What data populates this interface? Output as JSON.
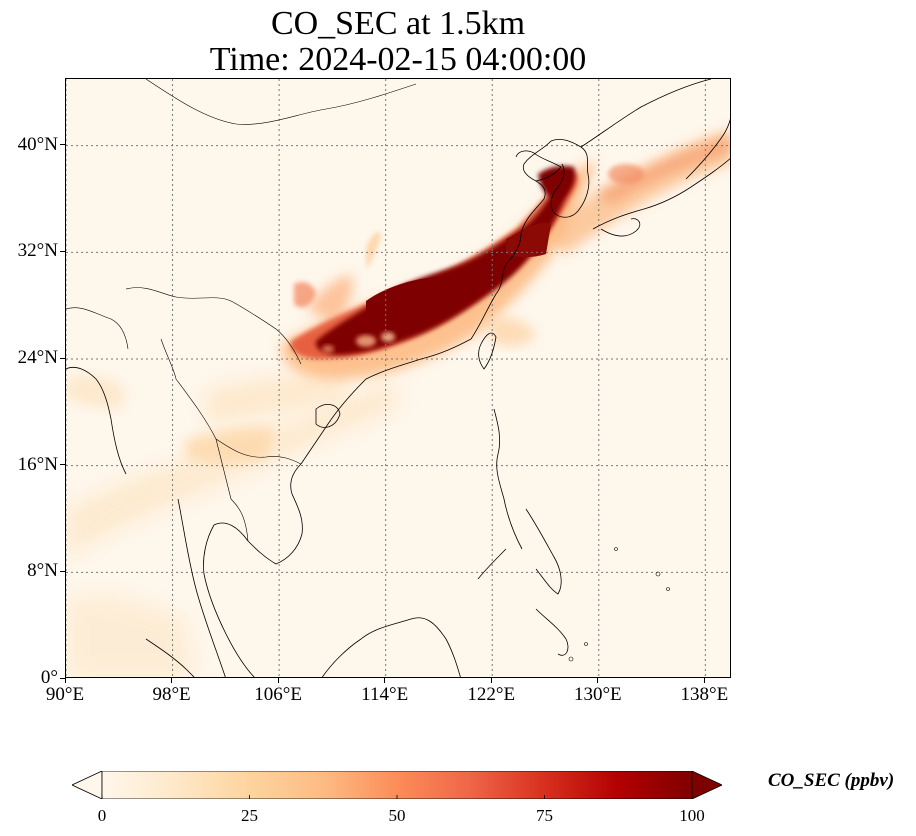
{
  "title": {
    "line1": "CO_SEC at 1.5km",
    "line2": "Time: 2024-02-15 04:00:00"
  },
  "map": {
    "variable": "CO_SEC",
    "level": "1.5km",
    "projection": "PlateCarree",
    "extent": {
      "lon_min": 90,
      "lon_max": 140,
      "lat_min": 0,
      "lat_max": 45
    },
    "gridlines": true,
    "gridline_style": "dotted gray",
    "lat_ticks": [
      {
        "value": 0,
        "label": "0°"
      },
      {
        "value": 8,
        "label": "8°N"
      },
      {
        "value": 16,
        "label": "16°N"
      },
      {
        "value": 24,
        "label": "24°N"
      },
      {
        "value": 32,
        "label": "32°N"
      },
      {
        "value": 40,
        "label": "40°N"
      }
    ],
    "lon_ticks": [
      {
        "value": 90,
        "label": "90°E"
      },
      {
        "value": 98,
        "label": "98°E"
      },
      {
        "value": 106,
        "label": "106°E"
      },
      {
        "value": 114,
        "label": "114°E"
      },
      {
        "value": 122,
        "label": "122°E"
      },
      {
        "value": 130,
        "label": "130°E"
      },
      {
        "value": 138,
        "label": "138°E"
      }
    ],
    "plume_region": "high concentrations from southern China (≈108–116°E, 24–28°N) northeast across the Yangtze delta to the Korean Peninsula and Sea of Japan"
  },
  "colorbar": {
    "label": "CO_SEC (ppbv)",
    "min": 0,
    "max": 100,
    "extend": "both",
    "colormap": "OrRd",
    "colors": [
      "#fff7ec",
      "#fee8c8",
      "#fdd49e",
      "#fdbb84",
      "#fc8d59",
      "#ef6548",
      "#d7301f",
      "#b30000",
      "#7f0000"
    ],
    "ticks": [
      {
        "value": 0,
        "label": "0"
      },
      {
        "value": 25,
        "label": "25"
      },
      {
        "value": 50,
        "label": "50"
      },
      {
        "value": 75,
        "label": "75"
      },
      {
        "value": 100,
        "label": "100"
      }
    ]
  }
}
